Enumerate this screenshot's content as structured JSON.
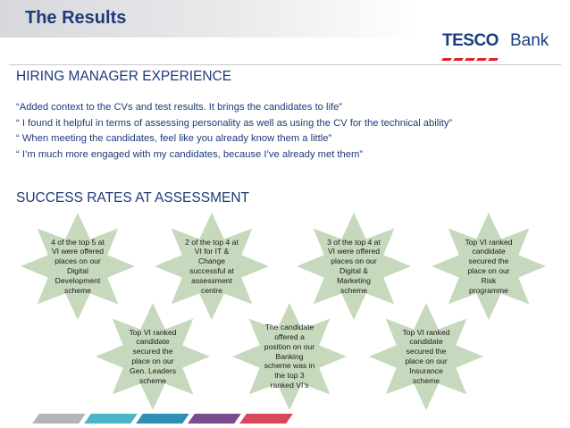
{
  "header": {
    "title": "The Results",
    "logo": {
      "word": "TESCO",
      "bank": "Bank",
      "stripe_color": "#e41e26",
      "text_color": "#1a3d82"
    }
  },
  "hiring": {
    "heading": "HIRING MANAGER EXPERIENCE",
    "quotes": [
      "“Added context to the CVs and test results. It brings the candidates to life”",
      "“ I found it helpful in terms of assessing personality as well as using the CV for the technical ability”",
      "“ When meeting the candidates, feel like you already know them a little”",
      "“ I’m much more engaged with my candidates, because I’ve already met them”"
    ]
  },
  "success": {
    "heading": "SUCCESS RATES AT ASSESSMENT",
    "star_color": "#c7d9bd",
    "stars": [
      "4 of the top 5 at VI were offered places on our Digital Development scheme",
      "2 of the top 4 at VI for IT & Change successful at assessment centre",
      "3 of the top 4 at VI were offered places on our Digital & Marketing scheme",
      "Top VI ranked candidate secured the place on our Risk programme",
      "Top VI ranked candidate secured the place on our Gen. Leaders scheme",
      "The candidate offered a position on our Banking scheme was in the top 3 ranked VI’s",
      "Top VI ranked candidate secured the place on our Insurance scheme"
    ]
  },
  "footer": {
    "stripe_colors": [
      "#b3b5b8",
      "#4cb4c7",
      "#2e8fb9",
      "#7b4b8f",
      "#d9475a"
    ]
  }
}
